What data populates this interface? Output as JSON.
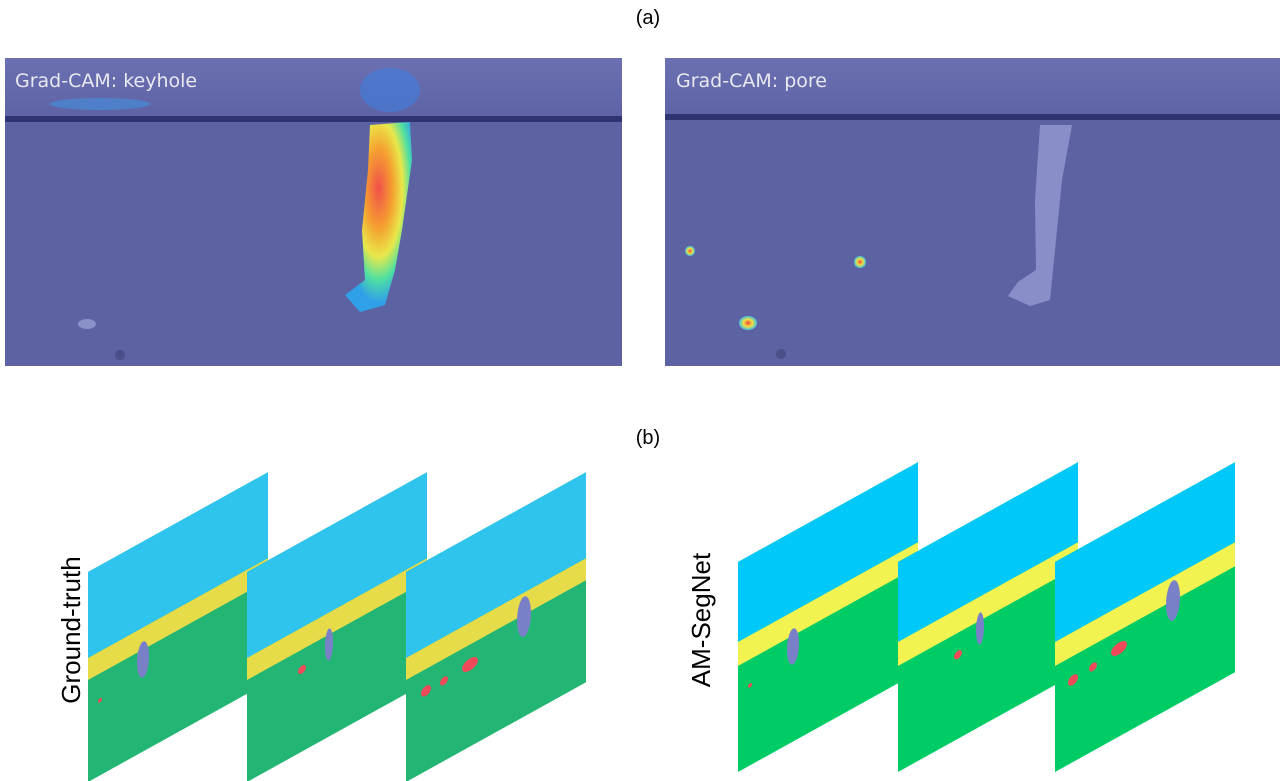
{
  "panel_a": {
    "label": "(a)",
    "left_title": "Grad-CAM: keyhole",
    "right_title": "Grad-CAM: pore"
  },
  "panel_b": {
    "label": "(b)",
    "left_title": "Ground-truth",
    "right_title": "AM-SegNet"
  }
}
